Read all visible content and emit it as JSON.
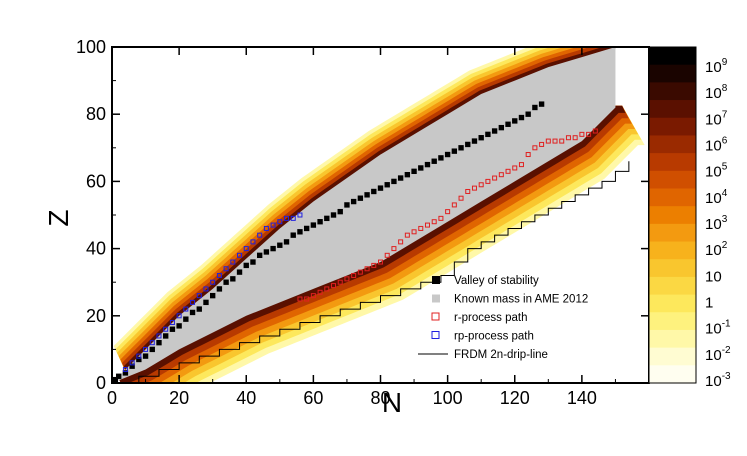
{
  "chart_data": {
    "type": "scatter",
    "title": "",
    "xlabel": "N",
    "ylabel": "Z",
    "xlim": [
      0,
      160
    ],
    "ylim": [
      0,
      100
    ],
    "xticks": [
      0,
      20,
      40,
      60,
      80,
      100,
      120,
      140
    ],
    "yticks": [
      0,
      20,
      40,
      60,
      80,
      100
    ],
    "grid": false,
    "legend_position": "bottom-right",
    "legend": [
      {
        "name": "Valley of stability",
        "marker": "filled-square",
        "color": "#000000"
      },
      {
        "name": "Known mass in AME 2012",
        "marker": "filled-square",
        "color": "#c8c8c8"
      },
      {
        "name": "r-process path",
        "marker": "open-square",
        "color": "#e02020"
      },
      {
        "name": "rp-process path",
        "marker": "open-square",
        "color": "#2020e0"
      },
      {
        "name": "FRDM 2n-drip-line",
        "marker": "line",
        "color": "#000000"
      }
    ],
    "colorbar": {
      "scale": "log",
      "range": [
        0.001,
        1000000000
      ],
      "labels": [
        {
          "base": "10",
          "exp": "9"
        },
        {
          "base": "10",
          "exp": "8"
        },
        {
          "base": "10",
          "exp": "7"
        },
        {
          "base": "10",
          "exp": "6"
        },
        {
          "base": "10",
          "exp": "5"
        },
        {
          "base": "10",
          "exp": "4"
        },
        {
          "base": "10",
          "exp": "3"
        },
        {
          "base": "10",
          "exp": "2"
        },
        {
          "base": "10",
          "exp": ""
        },
        {
          "base": "1",
          "exp": ""
        },
        {
          "base": "10",
          "exp": "-1"
        },
        {
          "base": "10",
          "exp": "-2"
        },
        {
          "base": "10",
          "exp": "-3"
        }
      ],
      "colors": [
        "#000000",
        "#1a0400",
        "#3a0a00",
        "#5a1000",
        "#7a1a00",
        "#9a2a00",
        "#b83a00",
        "#d04f00",
        "#e06500",
        "#ec7f00",
        "#f39a10",
        "#f7b21c",
        "#f9c62e",
        "#fbd843",
        "#fde85c",
        "#fef27e",
        "#fff8a8",
        "#fffcd2",
        "#fffef0"
      ]
    },
    "series": [
      {
        "name": "Valley of stability",
        "points": [
          [
            1,
            1
          ],
          [
            2,
            2
          ],
          [
            4,
            3
          ],
          [
            6,
            5
          ],
          [
            8,
            7
          ],
          [
            10,
            8
          ],
          [
            12,
            10
          ],
          [
            14,
            12
          ],
          [
            16,
            14
          ],
          [
            18,
            16
          ],
          [
            20,
            17
          ],
          [
            22,
            19
          ],
          [
            24,
            21
          ],
          [
            26,
            22
          ],
          [
            28,
            24
          ],
          [
            30,
            26
          ],
          [
            32,
            28
          ],
          [
            34,
            30
          ],
          [
            36,
            31
          ],
          [
            38,
            33
          ],
          [
            40,
            35
          ],
          [
            42,
            36
          ],
          [
            44,
            38
          ],
          [
            46,
            39
          ],
          [
            48,
            40
          ],
          [
            50,
            41
          ],
          [
            52,
            42
          ],
          [
            54,
            44
          ],
          [
            56,
            45
          ],
          [
            58,
            46
          ],
          [
            60,
            47
          ],
          [
            62,
            48
          ],
          [
            64,
            49
          ],
          [
            66,
            50
          ],
          [
            68,
            51
          ],
          [
            70,
            53
          ],
          [
            72,
            54
          ],
          [
            74,
            55
          ],
          [
            76,
            56
          ],
          [
            78,
            57
          ],
          [
            80,
            58
          ],
          [
            82,
            59
          ],
          [
            84,
            60
          ],
          [
            86,
            61
          ],
          [
            88,
            62
          ],
          [
            90,
            63
          ],
          [
            92,
            64
          ],
          [
            94,
            65
          ],
          [
            96,
            66
          ],
          [
            98,
            67
          ],
          [
            100,
            68
          ],
          [
            102,
            69
          ],
          [
            104,
            70
          ],
          [
            106,
            71
          ],
          [
            108,
            72
          ],
          [
            110,
            73
          ],
          [
            112,
            74
          ],
          [
            114,
            75
          ],
          [
            116,
            76
          ],
          [
            118,
            77
          ],
          [
            120,
            78
          ],
          [
            122,
            79
          ],
          [
            124,
            80
          ],
          [
            126,
            82
          ],
          [
            128,
            83
          ]
        ]
      },
      {
        "name": "r-process path",
        "points": [
          [
            56,
            25
          ],
          [
            58,
            25
          ],
          [
            60,
            26
          ],
          [
            62,
            27
          ],
          [
            64,
            28
          ],
          [
            66,
            29
          ],
          [
            68,
            30
          ],
          [
            70,
            31
          ],
          [
            72,
            32
          ],
          [
            74,
            33
          ],
          [
            76,
            34
          ],
          [
            78,
            35
          ],
          [
            80,
            36
          ],
          [
            82,
            38
          ],
          [
            84,
            40
          ],
          [
            86,
            42
          ],
          [
            88,
            44
          ],
          [
            90,
            45
          ],
          [
            92,
            46
          ],
          [
            94,
            47
          ],
          [
            96,
            48
          ],
          [
            98,
            49
          ],
          [
            100,
            51
          ],
          [
            102,
            53
          ],
          [
            104,
            55
          ],
          [
            106,
            57
          ],
          [
            108,
            58
          ],
          [
            110,
            59
          ],
          [
            112,
            60
          ],
          [
            114,
            61
          ],
          [
            116,
            62
          ],
          [
            118,
            63
          ],
          [
            120,
            64
          ],
          [
            122,
            65
          ],
          [
            124,
            68
          ],
          [
            126,
            70
          ],
          [
            128,
            71
          ],
          [
            130,
            72
          ],
          [
            132,
            72
          ],
          [
            134,
            72
          ],
          [
            136,
            73
          ],
          [
            138,
            73
          ],
          [
            140,
            74
          ],
          [
            142,
            74
          ],
          [
            144,
            75
          ]
        ]
      },
      {
        "name": "rp-process path",
        "points": [
          [
            4,
            4
          ],
          [
            6,
            6
          ],
          [
            8,
            8
          ],
          [
            10,
            10
          ],
          [
            12,
            12
          ],
          [
            14,
            14
          ],
          [
            16,
            16
          ],
          [
            18,
            18
          ],
          [
            20,
            20
          ],
          [
            22,
            22
          ],
          [
            24,
            24
          ],
          [
            26,
            26
          ],
          [
            28,
            28
          ],
          [
            30,
            30
          ],
          [
            32,
            32
          ],
          [
            34,
            34
          ],
          [
            36,
            36
          ],
          [
            38,
            38
          ],
          [
            40,
            40
          ],
          [
            42,
            42
          ],
          [
            44,
            44
          ],
          [
            46,
            46
          ],
          [
            48,
            47
          ],
          [
            50,
            48
          ],
          [
            52,
            49
          ],
          [
            54,
            49
          ],
          [
            56,
            50
          ]
        ]
      },
      {
        "name": "FRDM 2n-drip-line",
        "points": [
          [
            0,
            0
          ],
          [
            8,
            2
          ],
          [
            14,
            4
          ],
          [
            20,
            6
          ],
          [
            26,
            8
          ],
          [
            32,
            10
          ],
          [
            38,
            12
          ],
          [
            44,
            14
          ],
          [
            50,
            16
          ],
          [
            56,
            18
          ],
          [
            62,
            20
          ],
          [
            68,
            22
          ],
          [
            74,
            24
          ],
          [
            80,
            26
          ],
          [
            86,
            28
          ],
          [
            92,
            30
          ],
          [
            98,
            32
          ],
          [
            102,
            36
          ],
          [
            106,
            40
          ],
          [
            110,
            42
          ],
          [
            114,
            44
          ],
          [
            118,
            46
          ],
          [
            122,
            48
          ],
          [
            126,
            50
          ],
          [
            130,
            52
          ],
          [
            134,
            54
          ],
          [
            138,
            56
          ],
          [
            142,
            58
          ],
          [
            146,
            60
          ],
          [
            150,
            63
          ],
          [
            154,
            66
          ]
        ]
      },
      {
        "name": "Known mass in AME 2012",
        "band_lower": [
          [
            0,
            0
          ],
          [
            10,
            4
          ],
          [
            20,
            10
          ],
          [
            30,
            15
          ],
          [
            40,
            20
          ],
          [
            50,
            24
          ],
          [
            60,
            28
          ],
          [
            70,
            32
          ],
          [
            80,
            36
          ],
          [
            90,
            42
          ],
          [
            100,
            48
          ],
          [
            110,
            54
          ],
          [
            120,
            60
          ],
          [
            130,
            66
          ],
          [
            140,
            72
          ],
          [
            150,
            82
          ]
        ],
        "band_upper": [
          [
            2,
            2
          ],
          [
            10,
            10
          ],
          [
            20,
            20
          ],
          [
            30,
            28
          ],
          [
            40,
            37
          ],
          [
            50,
            46
          ],
          [
            60,
            54
          ],
          [
            70,
            61
          ],
          [
            80,
            68
          ],
          [
            90,
            74
          ],
          [
            100,
            80
          ],
          [
            110,
            86
          ],
          [
            120,
            90
          ],
          [
            130,
            94
          ],
          [
            140,
            97
          ],
          [
            150,
            100
          ]
        ]
      }
    ]
  }
}
